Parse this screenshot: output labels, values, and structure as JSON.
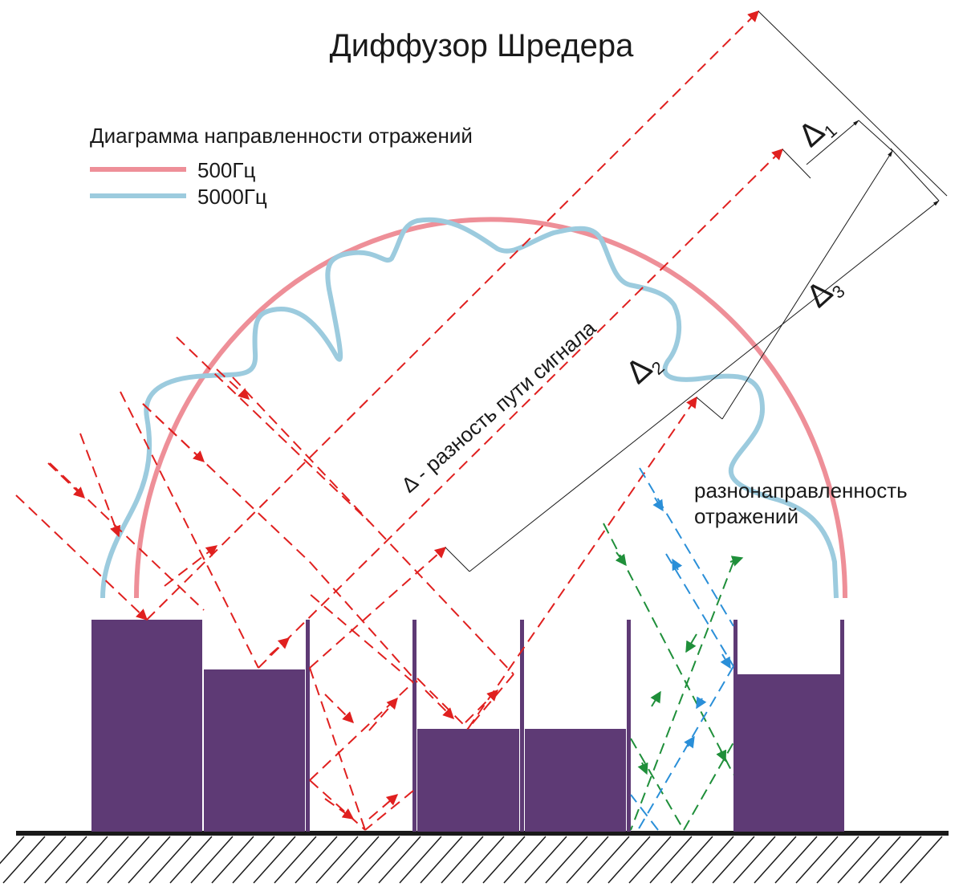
{
  "title": "Диффузор Шредера",
  "legend": {
    "title": "Диаграмма направленности отражений",
    "items": [
      {
        "label": "500Гц",
        "color": "#ee8f98"
      },
      {
        "label": "5000Гц",
        "color": "#9ccbde"
      }
    ]
  },
  "annotations": {
    "path_difference": "Δ - разность пути сигнала",
    "multidirectional_line1": "разнонаправленность",
    "multidirectional_line2": "отражений"
  },
  "deltas": [
    {
      "symbol": "Δ",
      "index": "1"
    },
    {
      "symbol": "Δ",
      "index": "2"
    },
    {
      "symbol": "Δ",
      "index": "3"
    }
  ],
  "colors": {
    "diffuser_block": "#5e3a75",
    "ray_red": "#e0201f",
    "ray_green": "#1f8f3a",
    "ray_blue": "#2a8fd8",
    "floor": "#1a1a1a"
  }
}
